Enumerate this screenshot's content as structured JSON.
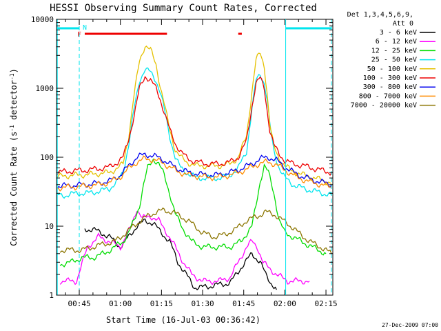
{
  "chart_data": {
    "type": "line",
    "title": "HESSI Observing Summary Count Rates, Corrected",
    "xlabel": "Start Time (16-Jul-03 00:36:42)",
    "ylabel": "Corrected Count Rate (s^-1 detector^-1)",
    "ylabel_parts": [
      "Corrected Count Rate (s",
      "-1",
      " detector",
      "-1",
      ")"
    ],
    "yscale": "log",
    "ylim": [
      1,
      10000
    ],
    "xlim_minutes": [
      36.7,
      137.5
    ],
    "x_ticks": [
      {
        "minute": 45,
        "label": "00:45"
      },
      {
        "minute": 60,
        "label": "01:00"
      },
      {
        "minute": 75,
        "label": "01:15"
      },
      {
        "minute": 90,
        "label": "01:30"
      },
      {
        "minute": 105,
        "label": "01:45"
      },
      {
        "minute": 120,
        "label": "02:00"
      },
      {
        "minute": 135,
        "label": "02:15"
      }
    ],
    "y_ticks": [
      {
        "value": 1,
        "label": "1"
      },
      {
        "value": 10,
        "label": "10"
      },
      {
        "value": 100,
        "label": "100"
      },
      {
        "value": 1000,
        "label": "1000"
      },
      {
        "value": 10000,
        "label": "10000"
      }
    ],
    "legend_header": [
      "Det 1,3,4,5,6,9,",
      "Att 0"
    ],
    "series": [
      {
        "name": "3 - 6 keV",
        "color": "#000000",
        "x": [
          47,
          50,
          53,
          56,
          60,
          63,
          66,
          69,
          72,
          75,
          78,
          81,
          84,
          87,
          90,
          95,
          100,
          104,
          108,
          111,
          113,
          115,
          117
        ],
        "y": [
          9,
          9,
          8,
          7,
          5,
          7,
          10,
          12,
          11,
          8,
          6,
          3,
          2,
          1.3,
          1.3,
          1.4,
          1.5,
          2.5,
          4,
          3,
          2,
          1.5,
          1.2
        ]
      },
      {
        "name": "6 - 12 keV",
        "color": "#ff00ff",
        "x": [
          38,
          44,
          48,
          52,
          56,
          60,
          64,
          66,
          68,
          71,
          74,
          77,
          80,
          83,
          86,
          90,
          96,
          100,
          103,
          106,
          108,
          110,
          112,
          114,
          117,
          121,
          124,
          129
        ],
        "y": [
          1.6,
          1.6,
          5,
          7,
          6,
          5,
          10,
          18,
          13,
          14,
          12,
          8,
          5,
          3,
          2,
          1.6,
          1.6,
          1.8,
          3,
          5,
          6,
          5,
          3,
          2.5,
          2,
          1.6,
          1.6,
          1.6
        ]
      },
      {
        "name": "12 - 25 keV",
        "color": "#00dd00",
        "x": [
          38,
          42,
          46,
          50,
          54,
          58,
          61,
          63,
          65,
          67,
          68.5,
          70,
          72,
          74,
          76,
          78,
          80,
          83,
          86,
          90,
          95,
          100,
          104,
          108,
          109.5,
          111,
          112.5,
          114,
          116,
          118,
          120,
          123,
          126,
          130,
          135
        ],
        "y": [
          2.8,
          3,
          3.5,
          3.5,
          4,
          5,
          6,
          8,
          12,
          20,
          40,
          70,
          95,
          80,
          55,
          30,
          15,
          9,
          6,
          5,
          5,
          5,
          6,
          10,
          20,
          45,
          75,
          60,
          30,
          12,
          8,
          7,
          6,
          5,
          4
        ]
      },
      {
        "name": "25 - 50 keV",
        "color": "#00e5ee",
        "x": [
          37,
          40,
          44,
          48,
          52,
          56,
          59,
          61,
          63,
          65,
          67,
          69,
          71,
          73,
          74.5,
          76,
          78,
          80,
          82,
          84,
          86,
          88,
          92,
          96,
          100,
          103,
          106,
          108,
          109.5,
          111,
          112.5,
          113.5,
          114.5,
          116,
          118,
          120,
          123,
          127,
          131,
          137
        ],
        "y": [
          28,
          28,
          30,
          30,
          32,
          35,
          45,
          60,
          150,
          500,
          1300,
          1900,
          1700,
          1300,
          900,
          500,
          200,
          100,
          70,
          60,
          55,
          50,
          50,
          50,
          55,
          70,
          120,
          500,
          1300,
          1600,
          1200,
          700,
          300,
          120,
          70,
          50,
          40,
          35,
          32,
          28
        ]
      },
      {
        "name": "50 - 100 keV",
        "color": "#e5c100",
        "x": [
          37,
          40,
          44,
          48,
          52,
          56,
          59,
          61,
          63,
          65,
          67,
          69,
          71,
          73,
          74.5,
          76,
          78,
          80,
          82,
          84,
          86,
          88,
          92,
          96,
          100,
          103,
          106,
          108,
          109.5,
          111,
          112.5,
          113.5,
          114.5,
          116,
          118,
          120,
          123,
          127,
          131,
          137
        ],
        "y": [
          52,
          54,
          55,
          56,
          58,
          60,
          70,
          80,
          200,
          800,
          2500,
          4200,
          3600,
          2200,
          1100,
          600,
          250,
          130,
          100,
          85,
          80,
          75,
          75,
          75,
          80,
          100,
          200,
          900,
          2600,
          3200,
          2100,
          900,
          300,
          140,
          95,
          75,
          62,
          55,
          50,
          42
        ]
      },
      {
        "name": "100 - 300 keV",
        "color": "#ee0000",
        "x": [
          37,
          40,
          44,
          48,
          52,
          56,
          59,
          61,
          63,
          65,
          67,
          69,
          71,
          73,
          74.5,
          76,
          78,
          80,
          82,
          84,
          86,
          88,
          92,
          96,
          100,
          103,
          106,
          108,
          109.5,
          111,
          112.5,
          113.5,
          114.5,
          116,
          118,
          120,
          123,
          127,
          131,
          137
        ],
        "y": [
          60,
          62,
          64,
          65,
          68,
          72,
          85,
          100,
          180,
          400,
          1000,
          1500,
          1300,
          1000,
          700,
          450,
          250,
          160,
          120,
          100,
          90,
          85,
          80,
          80,
          85,
          100,
          170,
          550,
          1200,
          1400,
          1000,
          500,
          250,
          150,
          110,
          90,
          80,
          75,
          68,
          60
        ]
      },
      {
        "name": "300 - 800 keV",
        "color": "#0000ee",
        "x": [
          37,
          42,
          47,
          52,
          56,
          60,
          63,
          66,
          69,
          72,
          75,
          78,
          81,
          85,
          90,
          95,
          100,
          104,
          108,
          111,
          114,
          117,
          120,
          125,
          130,
          137
        ],
        "y": [
          38,
          39,
          40,
          42,
          45,
          55,
          75,
          100,
          110,
          105,
          95,
          80,
          68,
          60,
          56,
          55,
          60,
          68,
          80,
          95,
          100,
          90,
          72,
          55,
          47,
          40
        ]
      },
      {
        "name": "800 - 7000 keV",
        "color": "#ff8c00",
        "x": [
          37,
          42,
          47,
          52,
          56,
          60,
          63,
          66,
          69,
          72,
          75,
          78,
          81,
          85,
          90,
          95,
          100,
          104,
          108,
          111,
          114,
          117,
          120,
          125,
          130,
          137
        ],
        "y": [
          36,
          37,
          38,
          40,
          43,
          52,
          68,
          85,
          95,
          92,
          85,
          72,
          62,
          55,
          52,
          51,
          55,
          62,
          72,
          82,
          85,
          78,
          65,
          50,
          43,
          37
        ]
      },
      {
        "name": "7000 - 20000 keV",
        "color": "#8b7500",
        "x": [
          38,
          42,
          46,
          50,
          54,
          58,
          62,
          66,
          70,
          73,
          76,
          79,
          82,
          86,
          90,
          94,
          98,
          102,
          106,
          110,
          113,
          116,
          118,
          121,
          125,
          129,
          133,
          137
        ],
        "y": [
          4.5,
          4.5,
          4.5,
          5,
          5.5,
          6,
          8,
          11,
          14,
          16,
          17,
          16,
          14,
          11,
          8,
          7,
          7.5,
          9,
          12,
          14,
          16,
          15,
          13,
          11,
          8,
          6,
          5,
          4
        ]
      }
    ],
    "annotations": {
      "attenuator_bars": [
        [
          37,
          45
        ],
        [
          120.3,
          137
        ]
      ],
      "flare_bars": [
        [
          47,
          77
        ],
        [
          103,
          104.3
        ]
      ],
      "flare_marker": "F",
      "night_marker": "N",
      "dashed_lines": [
        45,
        137
      ],
      "solid_lines": [
        37,
        120.3
      ]
    }
  },
  "footer_timestamp": "27-Dec-2009 07:00"
}
